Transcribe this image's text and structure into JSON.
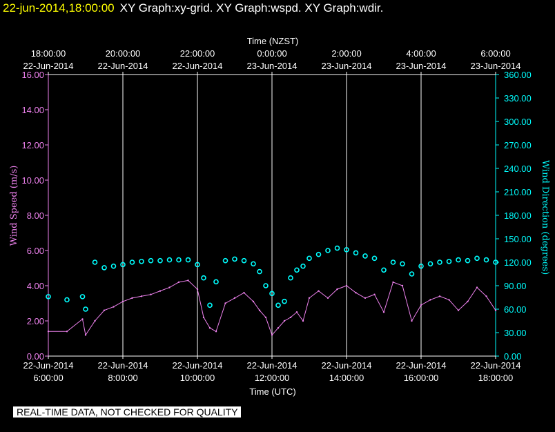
{
  "header": {
    "date": "22-jun-2014,18:00:00",
    "titles": "XY Graph:xy-grid.  XY Graph:wspd.  XY Graph:wdir."
  },
  "footer": {
    "note": "REAL-TIME DATA, NOT CHECKED FOR QUALITY"
  },
  "colors": {
    "wind_speed": "#ee82ee",
    "wind_direction": "#00ffff",
    "grid": "#ffffff",
    "background": "#000000"
  },
  "chart_data": {
    "type": "line",
    "top_axis": {
      "label": "Time (NZST)",
      "ticks": [
        {
          "time": "18:00:00",
          "date": "22-Jun-2014"
        },
        {
          "time": "20:00:00",
          "date": "22-Jun-2014"
        },
        {
          "time": "22:00:00",
          "date": "22-Jun-2014"
        },
        {
          "time": "0:00:00",
          "date": "23-Jun-2014"
        },
        {
          "time": "2:00:00",
          "date": "23-Jun-2014"
        },
        {
          "time": "4:00:00",
          "date": "23-Jun-2014"
        },
        {
          "time": "6:00:00",
          "date": "23-Jun-2014"
        }
      ]
    },
    "x_axis": {
      "label": "Time (UTC)",
      "range": [
        "22-Jun-2014 06:00",
        "22-Jun-2014 18:00"
      ],
      "ticks": [
        {
          "date": "22-Jun-2014",
          "time": "6:00:00"
        },
        {
          "date": "22-Jun-2014",
          "time": "8:00:00"
        },
        {
          "date": "22-Jun-2014",
          "time": "10:00:00"
        },
        {
          "date": "22-Jun-2014",
          "time": "12:00:00"
        },
        {
          "date": "22-Jun-2014",
          "time": "14:00:00"
        },
        {
          "date": "22-Jun-2014",
          "time": "16:00:00"
        },
        {
          "date": "22-Jun-2014",
          "time": "18:00:00"
        }
      ],
      "grid": true
    },
    "y_left": {
      "label": "Wind Speed (m/s)",
      "range": [
        0,
        16
      ],
      "ticks": [
        "0.00",
        "2.00",
        "4.00",
        "6.00",
        "8.00",
        "10.00",
        "12.00",
        "14.00",
        "16.00"
      ]
    },
    "y_right": {
      "label": "Wind Direction (degrees)",
      "range": [
        0,
        360
      ],
      "ticks": [
        "0.00",
        "30.00",
        "60.00",
        "90.00",
        "120.00",
        "150.00",
        "180.00",
        "210.00",
        "240.00",
        "270.00",
        "300.00",
        "330.00",
        "360.00"
      ]
    },
    "series": [
      {
        "name": "wspd",
        "style": "line",
        "axis": "left",
        "x": [
          "06:00",
          "06:30",
          "06:55",
          "07:00",
          "07:15",
          "07:30",
          "07:45",
          "08:00",
          "08:15",
          "08:30",
          "08:45",
          "09:00",
          "09:15",
          "09:30",
          "09:45",
          "10:00",
          "10:10",
          "10:20",
          "10:30",
          "10:45",
          "11:00",
          "11:15",
          "11:30",
          "11:40",
          "11:50",
          "12:00",
          "12:10",
          "12:20",
          "12:30",
          "12:40",
          "12:50",
          "13:00",
          "13:15",
          "13:30",
          "13:45",
          "14:00",
          "14:15",
          "14:30",
          "14:45",
          "15:00",
          "15:15",
          "15:30",
          "15:45",
          "16:00",
          "16:15",
          "16:30",
          "16:45",
          "17:00",
          "17:15",
          "17:30",
          "17:45",
          "18:00"
        ],
        "values": [
          1.4,
          1.4,
          2.1,
          1.2,
          2.0,
          2.6,
          2.8,
          3.1,
          3.3,
          3.4,
          3.5,
          3.7,
          3.9,
          4.2,
          4.3,
          3.8,
          2.2,
          1.6,
          1.4,
          3.0,
          3.3,
          3.6,
          3.1,
          2.6,
          2.2,
          1.2,
          1.6,
          2.0,
          2.2,
          2.5,
          2.0,
          3.3,
          3.7,
          3.3,
          3.8,
          4.0,
          3.6,
          3.3,
          3.5,
          2.5,
          4.2,
          4.0,
          2.0,
          2.9,
          3.2,
          3.4,
          3.2,
          2.6,
          3.1,
          3.9,
          3.4,
          2.6
        ]
      },
      {
        "name": "wdir",
        "style": "markers",
        "axis": "right",
        "x": [
          "06:00",
          "06:30",
          "06:55",
          "07:00",
          "07:15",
          "07:30",
          "07:45",
          "08:00",
          "08:15",
          "08:30",
          "08:45",
          "09:00",
          "09:15",
          "09:30",
          "09:45",
          "10:00",
          "10:10",
          "10:20",
          "10:30",
          "10:45",
          "11:00",
          "11:15",
          "11:30",
          "11:40",
          "11:50",
          "12:00",
          "12:10",
          "12:20",
          "12:30",
          "12:40",
          "12:50",
          "13:00",
          "13:15",
          "13:30",
          "13:45",
          "14:00",
          "14:15",
          "14:30",
          "14:45",
          "15:00",
          "15:15",
          "15:30",
          "15:45",
          "16:00",
          "16:15",
          "16:30",
          "16:45",
          "17:00",
          "17:15",
          "17:30",
          "17:45",
          "18:00"
        ],
        "values": [
          76,
          72,
          76,
          60,
          120,
          113,
          115,
          117,
          120,
          121,
          122,
          122,
          123,
          123,
          123,
          117,
          100,
          65,
          95,
          122,
          124,
          122,
          118,
          108,
          90,
          80,
          65,
          70,
          100,
          110,
          115,
          125,
          130,
          135,
          138,
          136,
          132,
          128,
          125,
          110,
          120,
          118,
          105,
          115,
          118,
          120,
          121,
          123,
          122,
          125,
          123,
          120
        ]
      }
    ]
  }
}
